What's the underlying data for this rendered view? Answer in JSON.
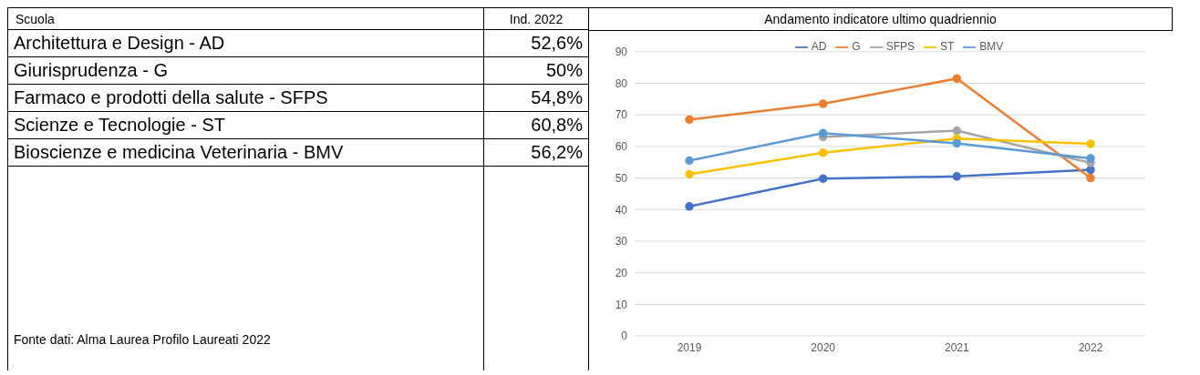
{
  "chart_data": [
    {
      "type": "other",
      "categories": [
        "Architettura e Design - AD",
        "Giurisprudenza - G",
        "Farmaco e prodotti della salute - SFPS",
        "Scienze e Tecnologie - ST",
        "Bioscienze e medicina Veterinaria - BMV"
      ],
      "value_labels": [
        "52,6%",
        "50%",
        "54,8%",
        "60,8%",
        "56,2%"
      ],
      "annotations": [
        "Scuola",
        "Ind. 2022",
        "Fonte dati: Alma Laurea Profilo Laureati 2022"
      ]
    },
    {
      "type": "line",
      "title": "Andamento indicatore ultimo quadriennio",
      "categories": [
        "2019",
        "2020",
        "2021",
        "2022"
      ],
      "series": [
        {
          "name": "AD",
          "color": "#4472c4",
          "values": [
            41,
            49.8,
            50.5,
            52.6
          ]
        },
        {
          "name": "G",
          "color": "#ed7d31",
          "values": [
            68.5,
            73.5,
            81.5,
            50
          ]
        },
        {
          "name": "SFPS",
          "color": "#a5a5a5",
          "values": [
            null,
            63,
            65,
            54.8
          ]
        },
        {
          "name": "ST",
          "color": "#ffc000",
          "values": [
            51.2,
            58,
            62.5,
            60.8
          ]
        },
        {
          "name": "BMV",
          "color": "#5b9bd5",
          "values": [
            55.5,
            64.2,
            61,
            56.2
          ]
        }
      ],
      "ylim": [
        0,
        90
      ],
      "yticks": [
        0,
        10,
        20,
        30,
        40,
        50,
        60,
        70,
        80,
        90
      ],
      "grid": "y",
      "legend": "top",
      "marker": "circle",
      "line_style": "solid"
    }
  ]
}
